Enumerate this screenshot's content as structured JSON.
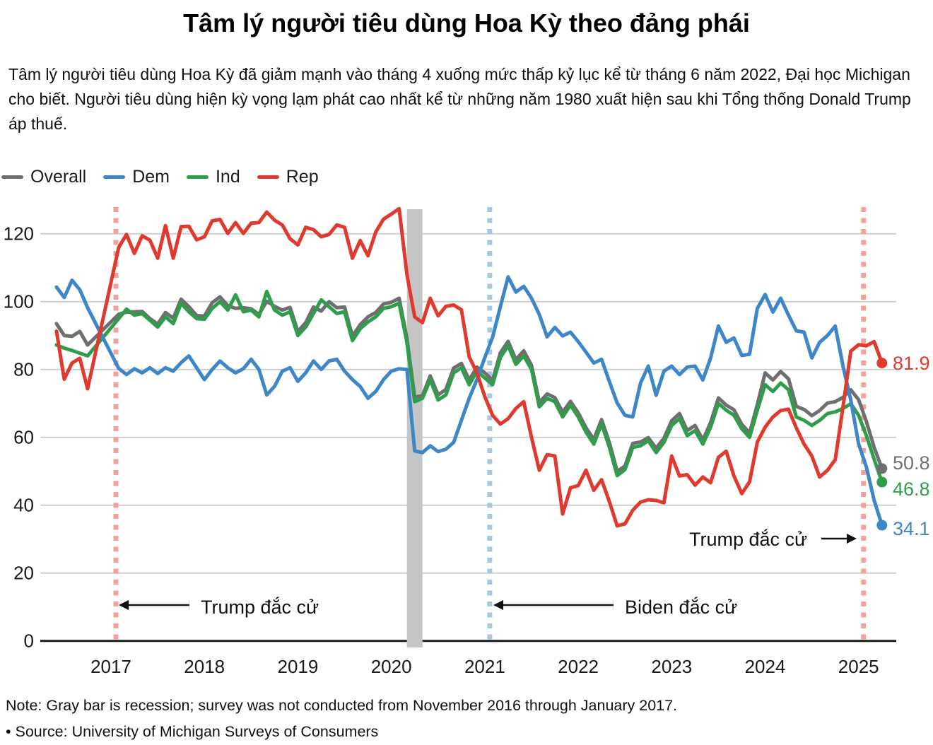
{
  "title": "Tâm lý người tiêu dùng Hoa Kỳ theo đảng phái",
  "subtitle": "Tâm lý người tiêu dùng Hoa Kỳ đã giảm mạnh vào tháng 4 xuống mức thấp kỷ lục kể từ tháng 6 năm 2022, Đại học Michigan cho biết. Người tiêu dùng hiện kỳ vọng lạm phát cao nhất kể từ những năm 1980 xuất hiện sau khi Tổng thống Donald Trump áp thuế.",
  "note": "Note: Gray bar is recession; survey was not conducted from November 2016 through January 2017.",
  "source": "• Source: University of Michigan Surveys of Consumers",
  "legend": [
    {
      "label": "Overall",
      "color": "#6f6f6f"
    },
    {
      "label": "Dem",
      "color": "#3d87c8"
    },
    {
      "label": "Ind",
      "color": "#2f9e4b"
    },
    {
      "label": "Rep",
      "color": "#e03a2e"
    }
  ],
  "chart_data": {
    "type": "line",
    "title": "Tâm lý người tiêu dùng Hoa Kỳ theo đảng phái",
    "xlabel": "",
    "ylabel": "",
    "grid": "horizontal",
    "y_axis": {
      "ticks": [
        0,
        20,
        40,
        60,
        80,
        100,
        120
      ],
      "range": [
        0,
        130
      ]
    },
    "x_axis": {
      "tick_years": [
        2017,
        2018,
        2019,
        2020,
        2021,
        2022,
        2023,
        2024,
        2025
      ]
    },
    "timeline": {
      "start_month": "2016-06",
      "end_month": "2025-04",
      "gap_months": [
        "2016-11",
        "2016-12",
        "2017-01"
      ]
    },
    "recession_bar": {
      "from": "2020-02",
      "to": "2020-04",
      "color": "#c5c5c5"
    },
    "events": [
      {
        "id": "trump-2017",
        "month": "2017-01",
        "line_color": "#f0a39d"
      },
      {
        "id": "biden-2021",
        "month": "2021-01",
        "line_color": "#a4c8e1"
      },
      {
        "id": "trump-2025",
        "month": "2025-01",
        "line_color": "#f0a39d"
      }
    ],
    "annotations": [
      {
        "id": "trump-2017",
        "text": "Trump đắc cử",
        "arrow": "left"
      },
      {
        "id": "biden-2021",
        "text": "Biden đắc cử",
        "arrow": "left"
      },
      {
        "id": "trump-2025",
        "text": "Trump đắc cử",
        "arrow": "right"
      }
    ],
    "series": [
      {
        "name": "Overall",
        "color": "#6f6f6f",
        "end_label": "50.8",
        "values": [
          93.5,
          90.0,
          89.8,
          91.2,
          87.2,
          96.3,
          96.9,
          97.0,
          97.1,
          95.0,
          93.4,
          96.8,
          95.1,
          100.7,
          98.5,
          95.9,
          95.7,
          99.7,
          101.4,
          98.8,
          98.0,
          98.2,
          97.9,
          96.2,
          100.1,
          98.6,
          97.5,
          98.3,
          91.2,
          93.8,
          98.4,
          97.2,
          100.0,
          98.2,
          98.4,
          89.8,
          93.2,
          95.5,
          96.8,
          99.3,
          99.8,
          101.0,
          89.1,
          71.8,
          72.3,
          78.1,
          72.5,
          74.1,
          80.4,
          81.8,
          76.9,
          80.7,
          79.0,
          76.8,
          84.9,
          88.3,
          82.9,
          85.5,
          81.2,
          70.3,
          72.8,
          71.7,
          67.4,
          70.6,
          67.2,
          62.8,
          59.4,
          65.2,
          58.4,
          50.0,
          51.5,
          58.2,
          58.6,
          59.9,
          56.8,
          59.7,
          64.9,
          67.0,
          62.0,
          63.5,
          59.2,
          64.4,
          71.6,
          69.5,
          68.1,
          63.8,
          61.3,
          69.7,
          79.0,
          76.9,
          79.4,
          77.2,
          69.1,
          68.2,
          66.4,
          67.9,
          70.1,
          70.5,
          71.8,
          74.0,
          71.1,
          64.7,
          57.0,
          50.8
        ]
      },
      {
        "name": "Dem",
        "color": "#3d87c8",
        "end_label": "34.1",
        "values": [
          104.3,
          101.2,
          106.3,
          103.5,
          98.2,
          80.3,
          78.5,
          80.2,
          79.0,
          80.5,
          78.8,
          80.5,
          79.5,
          82.0,
          84.0,
          80.5,
          77.0,
          80.0,
          82.5,
          80.5,
          79.0,
          80.2,
          83.0,
          80.0,
          72.5,
          75.0,
          79.5,
          80.5,
          76.5,
          79.0,
          82.5,
          80.0,
          82.5,
          83.0,
          79.5,
          77.0,
          75.0,
          71.5,
          73.5,
          77.0,
          79.5,
          80.2,
          80.0,
          56.0,
          55.5,
          57.5,
          55.8,
          56.5,
          58.5,
          65.0,
          71.5,
          77.0,
          83.5,
          89.5,
          98.5,
          107.3,
          102.8,
          104.5,
          101.0,
          96.2,
          89.6,
          92.4,
          89.9,
          91.0,
          88.2,
          85.1,
          81.9,
          83.0,
          76.4,
          70.1,
          66.5,
          66.0,
          76.0,
          81.0,
          72.4,
          79.5,
          81.0,
          78.5,
          80.7,
          81.0,
          76.9,
          83.4,
          92.8,
          88.0,
          89.3,
          84.1,
          84.5,
          98.0,
          102.1,
          96.9,
          101.0,
          96.0,
          91.4,
          91.0,
          83.4,
          88.0,
          90.0,
          92.8,
          81.0,
          71.0,
          58.1,
          51.3,
          41.4,
          34.1
        ]
      },
      {
        "name": "Ind",
        "color": "#2f9e4b",
        "end_label": "46.8",
        "values": [
          87.2,
          86.3,
          85.6,
          84.8,
          84.0,
          95.0,
          97.8,
          96.0,
          96.5,
          94.5,
          92.5,
          95.5,
          93.5,
          99.5,
          97.0,
          95.0,
          94.8,
          98.0,
          100.0,
          97.5,
          102.0,
          97.0,
          97.5,
          95.5,
          103.0,
          97.5,
          96.0,
          97.0,
          90.0,
          92.5,
          96.5,
          100.5,
          98.5,
          96.5,
          97.0,
          88.5,
          92.0,
          94.0,
          95.5,
          98.0,
          98.5,
          99.5,
          88.0,
          70.5,
          71.5,
          77.0,
          71.0,
          72.5,
          79.0,
          80.5,
          75.5,
          79.5,
          77.5,
          75.5,
          83.5,
          87.0,
          81.5,
          84.0,
          80.0,
          69.0,
          71.5,
          70.5,
          66.0,
          69.5,
          66.0,
          61.5,
          58.0,
          64.0,
          57.0,
          48.7,
          50.5,
          57.0,
          57.5,
          59.0,
          55.5,
          58.5,
          63.5,
          65.5,
          60.5,
          62.0,
          58.0,
          63.0,
          70.0,
          68.0,
          66.5,
          62.5,
          60.0,
          68.0,
          75.5,
          73.5,
          76.0,
          74.0,
          66.0,
          65.0,
          63.5,
          65.0,
          67.0,
          67.5,
          68.5,
          69.9,
          66.5,
          60.5,
          53.5,
          46.8
        ]
      },
      {
        "name": "Rep",
        "color": "#e03a2e",
        "end_label": "81.9",
        "values": [
          91.3,
          77.1,
          81.9,
          83.3,
          74.3,
          116.0,
          119.8,
          114.2,
          119.4,
          118.1,
          112.8,
          122.4,
          112.8,
          122.1,
          122.2,
          118.2,
          119.1,
          123.8,
          124.2,
          120.1,
          123.3,
          120.1,
          123.1,
          123.3,
          126.4,
          124.0,
          122.6,
          118.5,
          116.7,
          121.9,
          121.2,
          119.1,
          119.8,
          122.6,
          121.9,
          112.8,
          118.0,
          113.5,
          120.5,
          124.3,
          125.8,
          127.4,
          108.0,
          95.5,
          93.8,
          101.0,
          95.8,
          98.6,
          99.0,
          97.6,
          83.7,
          79.0,
          72.0,
          66.5,
          63.9,
          65.5,
          68.5,
          70.5,
          60.0,
          50.3,
          54.9,
          54.5,
          37.4,
          45.1,
          45.8,
          50.3,
          44.4,
          47.5,
          41.0,
          33.9,
          34.5,
          38.5,
          40.9,
          41.6,
          41.4,
          40.7,
          54.5,
          48.6,
          49.0,
          45.9,
          48.3,
          46.6,
          54.1,
          55.9,
          48.6,
          43.4,
          46.9,
          58.6,
          63.0,
          66.0,
          67.9,
          68.3,
          62.8,
          58.0,
          54.5,
          48.3,
          50.3,
          53.4,
          69.0,
          85.4,
          87.3,
          87.0,
          88.2,
          81.9
        ]
      }
    ]
  }
}
